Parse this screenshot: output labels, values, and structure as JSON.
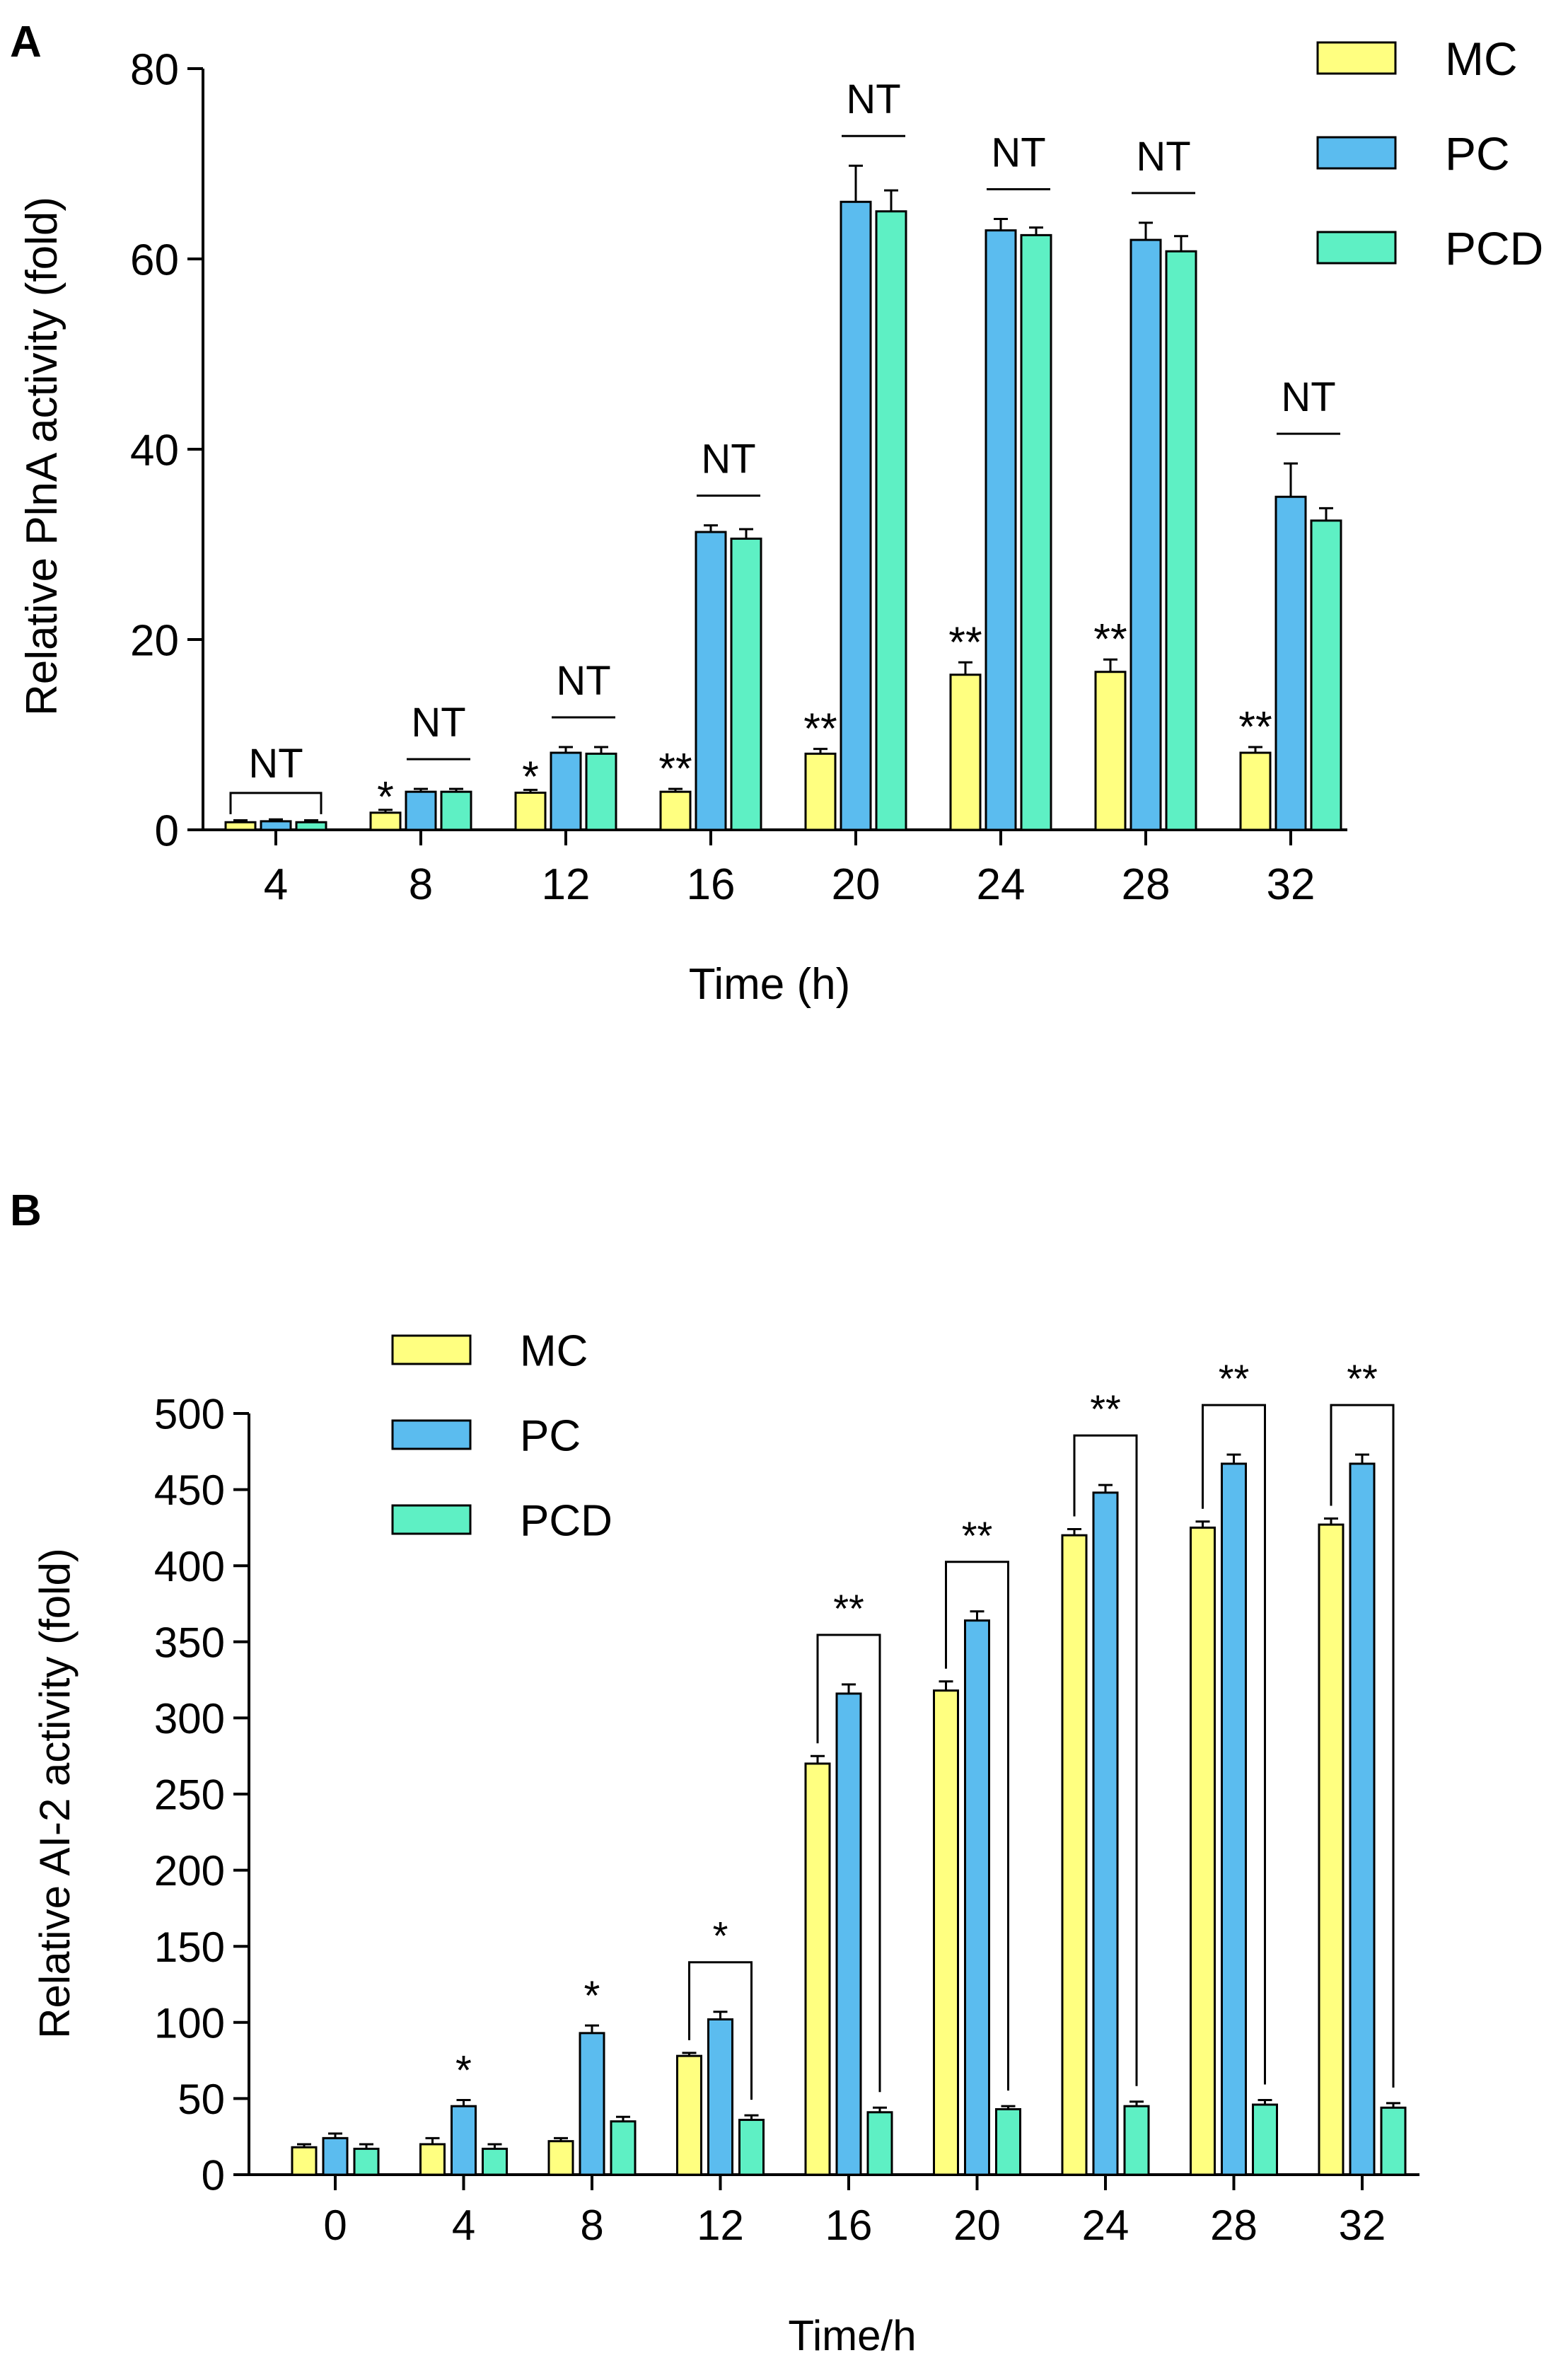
{
  "colors": {
    "MC": "#ffff80",
    "PC": "#5bbcef",
    "PCD": "#5ef0c4"
  },
  "chart_data": [
    {
      "panel": "A",
      "type": "bar",
      "title": "",
      "xlabel": "Time (h)",
      "ylabel": "Relative PlnA activity (fold)",
      "ylim": [
        0,
        80
      ],
      "yticks": [
        0,
        20,
        40,
        60,
        80
      ],
      "grid": false,
      "legend_position": "top-right",
      "categories": [
        "4",
        "8",
        "12",
        "16",
        "20",
        "24",
        "28",
        "32"
      ],
      "series": [
        {
          "name": "MC",
          "values": [
            0.8,
            1.8,
            3.9,
            4.0,
            8.0,
            16.3,
            16.6,
            8.1
          ],
          "errors": [
            0.2,
            0.3,
            0.3,
            0.3,
            0.5,
            1.3,
            1.3,
            0.6
          ]
        },
        {
          "name": "PC",
          "values": [
            0.9,
            4.0,
            8.1,
            31.3,
            66.0,
            63.0,
            62.0,
            35.0
          ],
          "errors": [
            0.2,
            0.3,
            0.6,
            0.7,
            3.8,
            1.2,
            1.8,
            3.5
          ]
        },
        {
          "name": "PCD",
          "values": [
            0.8,
            4.0,
            8.0,
            30.6,
            65.0,
            62.5,
            60.8,
            32.5
          ],
          "errors": [
            0.2,
            0.3,
            0.7,
            1.0,
            2.2,
            0.8,
            1.6,
            1.3
          ]
        }
      ],
      "annotations": [
        {
          "category": "4",
          "text": "NT",
          "kind": "bracket-all"
        },
        {
          "category": "8",
          "text": "*",
          "kind": "mc-star"
        },
        {
          "category": "8",
          "text": "NT",
          "kind": "line-pc-pcd"
        },
        {
          "category": "12",
          "text": "*",
          "kind": "mc-star"
        },
        {
          "category": "12",
          "text": "NT",
          "kind": "line-pc-pcd"
        },
        {
          "category": "16",
          "text": "**",
          "kind": "mc-star"
        },
        {
          "category": "16",
          "text": "NT",
          "kind": "line-pc-pcd"
        },
        {
          "category": "20",
          "text": "**",
          "kind": "mc-star"
        },
        {
          "category": "20",
          "text": "NT",
          "kind": "line-pc-pcd"
        },
        {
          "category": "24",
          "text": "**",
          "kind": "mc-star"
        },
        {
          "category": "24",
          "text": "NT",
          "kind": "line-pc-pcd"
        },
        {
          "category": "28",
          "text": "**",
          "kind": "mc-star"
        },
        {
          "category": "28",
          "text": "NT",
          "kind": "line-pc-pcd"
        },
        {
          "category": "32",
          "text": "**",
          "kind": "mc-star"
        },
        {
          "category": "32",
          "text": "NT",
          "kind": "line-pc-pcd"
        }
      ]
    },
    {
      "panel": "B",
      "type": "bar",
      "title": "",
      "xlabel": "Time/h",
      "ylabel": "Relative AI-2 activity (fold)",
      "ylim": [
        0,
        500
      ],
      "yticks": [
        0,
        50,
        100,
        150,
        200,
        250,
        300,
        350,
        400,
        450,
        500
      ],
      "grid": false,
      "legend_position": "top-left",
      "categories": [
        "0",
        "4",
        "8",
        "12",
        "16",
        "20",
        "24",
        "28",
        "32"
      ],
      "series": [
        {
          "name": "MC",
          "values": [
            18,
            20,
            22,
            78,
            270,
            318,
            420,
            425,
            427
          ],
          "errors": [
            2,
            4,
            2,
            2,
            5,
            6,
            4,
            4,
            4
          ]
        },
        {
          "name": "PC",
          "values": [
            24,
            45,
            93,
            102,
            316,
            364,
            448,
            467,
            467
          ],
          "errors": [
            3,
            4,
            5,
            5,
            6,
            6,
            5,
            6,
            6
          ]
        },
        {
          "name": "PCD",
          "values": [
            17,
            17,
            35,
            36,
            41,
            43,
            45,
            46,
            44
          ],
          "errors": [
            3,
            3,
            3,
            3,
            3,
            2,
            3,
            3,
            3
          ]
        }
      ],
      "annotations": [
        {
          "category": "4",
          "text": "*",
          "kind": "pc-star"
        },
        {
          "category": "8",
          "text": "*",
          "kind": "pc-star"
        },
        {
          "category": "12",
          "text": "*",
          "kind": "bracket-all"
        },
        {
          "category": "16",
          "text": "**",
          "kind": "bracket-all"
        },
        {
          "category": "20",
          "text": "**",
          "kind": "bracket-all"
        },
        {
          "category": "24",
          "text": "**",
          "kind": "bracket-all"
        },
        {
          "category": "28",
          "text": "**",
          "kind": "bracket-all"
        },
        {
          "category": "32",
          "text": "**",
          "kind": "bracket-all"
        }
      ]
    }
  ]
}
